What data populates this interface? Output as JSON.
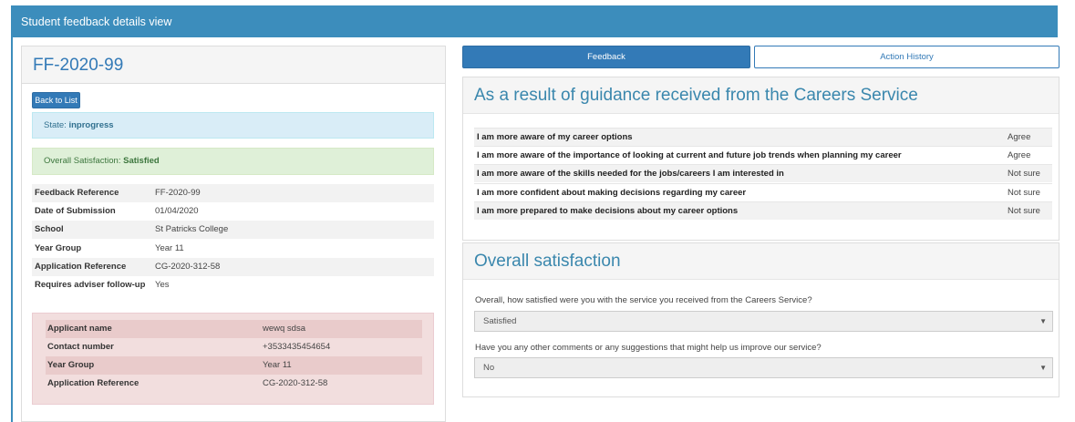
{
  "header": {
    "title": "Student feedback details view"
  },
  "left": {
    "title": "FF-2020-99",
    "back_label": "Back to List",
    "state_label": "State: ",
    "state_value": "inprogress",
    "satisfaction_label": "Overall Satisfaction: ",
    "satisfaction_value": "Satisfied",
    "details": [
      {
        "label": "Feedback Reference",
        "value": "FF-2020-99"
      },
      {
        "label": "Date of Submission",
        "value": "01/04/2020"
      },
      {
        "label": "School",
        "value": "St Patricks College"
      },
      {
        "label": "Year Group",
        "value": "Year 11"
      },
      {
        "label": "Application Reference",
        "value": "CG-2020-312-58"
      },
      {
        "label": "Requires adviser follow-up",
        "value": "Yes"
      }
    ],
    "applicant": [
      {
        "label": "Applicant name",
        "value": "wewq sdsa"
      },
      {
        "label": "Contact number",
        "value": "+3533435454654"
      },
      {
        "label": "Year Group",
        "value": "Year 11"
      },
      {
        "label": "Application Reference",
        "value": "CG-2020-312-58"
      }
    ]
  },
  "tabs": [
    {
      "label": "Feedback",
      "active": true
    },
    {
      "label": "Action History",
      "active": false
    }
  ],
  "guidance": {
    "title": "As a result of guidance received from the Careers Service",
    "rows": [
      {
        "question": "I am more aware of my career options",
        "answer": "Agree"
      },
      {
        "question": "I am more aware of the importance of looking at current and future job trends when planning my career",
        "answer": "Agree"
      },
      {
        "question": "I am more aware of the skills needed for the jobs/careers I am interested in",
        "answer": "Not sure"
      },
      {
        "question": "I am more confident about making decisions regarding my career",
        "answer": "Not sure"
      },
      {
        "question": "I am more prepared to make decisions about my career options",
        "answer": "Not sure"
      }
    ]
  },
  "overall": {
    "title": "Overall satisfaction",
    "q1_label": "Overall, how satisfied were you with the service you received from the Careers Service?",
    "q1_value": "Satisfied",
    "q2_label": "Have you any other comments or any suggestions that might help us improve our service?",
    "q2_value": "No"
  },
  "colors": {
    "primary": "#337ab7",
    "header": "#3c8dbc",
    "info": "#d9edf7",
    "success": "#dff0d8",
    "danger": "#f2dede"
  },
  "icons": {
    "dropdown": "caret-down-icon"
  }
}
